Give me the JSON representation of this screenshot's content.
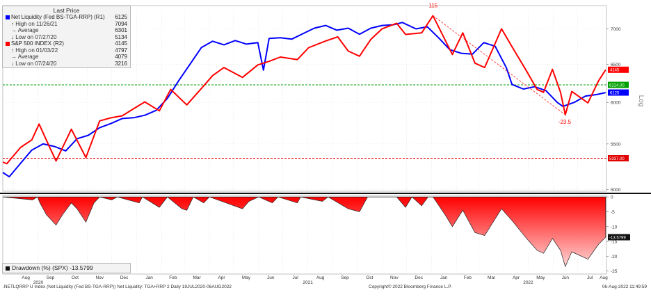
{
  "legend": {
    "title": "Last Price",
    "rows": [
      {
        "key": "nl",
        "label": "Net Liquidity (Fed BS-TGA-RRP)  (R1)",
        "value": "6125",
        "color": "#0000ff"
      },
      {
        "key": "nl_high",
        "label": "High on 11/26/21",
        "value": "7094"
      },
      {
        "key": "nl_avg",
        "label": "Average",
        "value": "6301"
      },
      {
        "key": "nl_low",
        "label": "Low on 07/27/20",
        "value": "5134"
      },
      {
        "key": "spx",
        "label": "S&P 500 INDEX  (R2)",
        "value": "4145",
        "color": "#ff0000"
      },
      {
        "key": "spx_high",
        "label": "High on 01/03/22",
        "value": "4797"
      },
      {
        "key": "spx_avg",
        "label": "Average",
        "value": "4079"
      },
      {
        "key": "spx_low",
        "label": "Low on 07/24/20",
        "value": "3216"
      }
    ]
  },
  "drawdown_legend": "Drawdown (%) (SPX) -13.5799",
  "footer": {
    "left": ".NETLQRRP U Index (Net Liquidity (Fed BS-TGA-RRP)) Net Liquidity: TGA+RRP 2  Daily 19JUL2020-06AUG2022",
    "middle": "Copyright© 2022 Bloomberg Finance L.P.",
    "right": "06-Aug-2022 11:49:59"
  },
  "chart_data": [
    {
      "type": "line",
      "series": [
        {
          "name": "Net Liquidity (Fed BS-TGA-RRP)",
          "axis": "R1",
          "color": "#0000ff",
          "points": [
            [
              "2020-07-19",
              5180
            ],
            [
              "2020-07-27",
              5134
            ],
            [
              "2020-08-10",
              5280
            ],
            [
              "2020-08-24",
              5430
            ],
            [
              "2020-09-07",
              5500
            ],
            [
              "2020-09-21",
              5470
            ],
            [
              "2020-10-05",
              5420
            ],
            [
              "2020-10-19",
              5560
            ],
            [
              "2020-11-02",
              5600
            ],
            [
              "2020-11-16",
              5690
            ],
            [
              "2020-11-30",
              5740
            ],
            [
              "2020-12-14",
              5800
            ],
            [
              "2020-12-28",
              5810
            ],
            [
              "2021-01-11",
              5840
            ],
            [
              "2021-01-25",
              5900
            ],
            [
              "2021-02-08",
              6050
            ],
            [
              "2021-02-22",
              6280
            ],
            [
              "2021-03-08",
              6500
            ],
            [
              "2021-03-22",
              6730
            ],
            [
              "2021-04-05",
              6820
            ],
            [
              "2021-04-19",
              6770
            ],
            [
              "2021-05-03",
              6830
            ],
            [
              "2021-05-17",
              6780
            ],
            [
              "2021-05-31",
              6800
            ],
            [
              "2021-06-07",
              6420
            ],
            [
              "2021-06-14",
              6860
            ],
            [
              "2021-06-28",
              6870
            ],
            [
              "2021-07-12",
              6850
            ],
            [
              "2021-07-26",
              6930
            ],
            [
              "2021-08-09",
              7010
            ],
            [
              "2021-08-23",
              7050
            ],
            [
              "2021-09-06",
              6980
            ],
            [
              "2021-09-20",
              7010
            ],
            [
              "2021-10-04",
              6920
            ],
            [
              "2021-10-18",
              7010
            ],
            [
              "2021-11-01",
              7050
            ],
            [
              "2021-11-15",
              7060
            ],
            [
              "2021-11-26",
              7094
            ],
            [
              "2021-12-13",
              7000
            ],
            [
              "2021-12-27",
              7030
            ],
            [
              "2022-01-10",
              6870
            ],
            [
              "2022-01-24",
              6700
            ],
            [
              "2022-02-07",
              6650
            ],
            [
              "2022-02-21",
              6640
            ],
            [
              "2022-03-07",
              6800
            ],
            [
              "2022-03-21",
              6750
            ],
            [
              "2022-04-04",
              6450
            ],
            [
              "2022-04-11",
              6230
            ],
            [
              "2022-04-25",
              6170
            ],
            [
              "2022-05-09",
              6200
            ],
            [
              "2022-05-23",
              6150
            ],
            [
              "2022-06-06",
              6000
            ],
            [
              "2022-06-13",
              5950
            ],
            [
              "2022-06-27",
              6000
            ],
            [
              "2022-07-11",
              6080
            ],
            [
              "2022-07-25",
              6100
            ],
            [
              "2022-08-05",
              6125
            ]
          ]
        },
        {
          "name": "S&P 500 INDEX",
          "axis": "R2",
          "color": "#ff0000",
          "points": [
            [
              "2020-07-19",
              3230
            ],
            [
              "2020-07-24",
              3216
            ],
            [
              "2020-08-10",
              3360
            ],
            [
              "2020-08-24",
              3430
            ],
            [
              "2020-09-02",
              3580
            ],
            [
              "2020-09-14",
              3380
            ],
            [
              "2020-09-23",
              3240
            ],
            [
              "2020-10-12",
              3530
            ],
            [
              "2020-10-30",
              3270
            ],
            [
              "2020-11-16",
              3610
            ],
            [
              "2020-11-30",
              3640
            ],
            [
              "2020-12-14",
              3660
            ],
            [
              "2020-12-28",
              3730
            ],
            [
              "2021-01-11",
              3800
            ],
            [
              "2021-01-29",
              3710
            ],
            [
              "2021-02-12",
              3930
            ],
            [
              "2021-03-04",
              3770
            ],
            [
              "2021-03-22",
              3940
            ],
            [
              "2021-04-05",
              4080
            ],
            [
              "2021-04-19",
              4170
            ],
            [
              "2021-05-12",
              4060
            ],
            [
              "2021-05-31",
              4200
            ],
            [
              "2021-06-14",
              4240
            ],
            [
              "2021-06-28",
              4290
            ],
            [
              "2021-07-19",
              4260
            ],
            [
              "2021-08-02",
              4400
            ],
            [
              "2021-08-23",
              4480
            ],
            [
              "2021-09-07",
              4530
            ],
            [
              "2021-09-20",
              4360
            ],
            [
              "2021-10-04",
              4300
            ],
            [
              "2021-10-18",
              4500
            ],
            [
              "2021-11-01",
              4630
            ],
            [
              "2021-11-19",
              4700
            ],
            [
              "2021-11-30",
              4560
            ],
            [
              "2021-12-20",
              4580
            ],
            [
              "2022-01-03",
              4797
            ],
            [
              "2022-01-27",
              4320
            ],
            [
              "2022-02-09",
              4580
            ],
            [
              "2022-02-24",
              4220
            ],
            [
              "2022-03-08",
              4170
            ],
            [
              "2022-03-29",
              4630
            ],
            [
              "2022-04-11",
              4410
            ],
            [
              "2022-04-29",
              4130
            ],
            [
              "2022-05-12",
              3930
            ],
            [
              "2022-05-20",
              3900
            ],
            [
              "2022-05-31",
              4150
            ],
            [
              "2022-06-10",
              3900
            ],
            [
              "2022-06-16",
              3670
            ],
            [
              "2022-06-24",
              3910
            ],
            [
              "2022-07-14",
              3790
            ],
            [
              "2022-07-27",
              4020
            ],
            [
              "2022-08-05",
              4145
            ]
          ]
        }
      ],
      "right_axis_ticks": [
        5000,
        5500,
        6000,
        6500,
        7000
      ],
      "right_axis_label": "Log",
      "reference_lines": [
        {
          "label": "6224.00",
          "value": 6224,
          "color": "#00a000"
        },
        {
          "label": "5337.00",
          "value": 5337,
          "color": "#e00000"
        }
      ],
      "last_value_tags": [
        {
          "label": "4145",
          "color": "#ff0000"
        },
        {
          "label": "6125",
          "color": "#0000ff"
        }
      ],
      "annotations": [
        {
          "text": "115",
          "color": "#ff0000"
        },
        {
          "text": "-23.5",
          "color": "#ff0000"
        }
      ],
      "x_months": [
        "Aug",
        "Sep",
        "Oct",
        "Nov",
        "Dec",
        "Jan",
        "Feb",
        "Mar",
        "Apr",
        "May",
        "Jun",
        "Jul",
        "Aug",
        "Sep",
        "Oct",
        "Nov",
        "Dec",
        "Jan",
        "Feb",
        "Mar",
        "Apr",
        "May",
        "Jun",
        "Jul",
        "Aug"
      ],
      "x_years": [
        "2020",
        "2021",
        "2022"
      ]
    },
    {
      "type": "area",
      "name": "Drawdown (%) (SPX)",
      "last_value": "-13.5799",
      "y_ticks": [
        0,
        -5,
        -10,
        -15,
        -20,
        -25
      ],
      "ylim": [
        -26,
        0.5
      ],
      "points": [
        [
          "2020-07-19",
          0
        ],
        [
          "2020-08-25",
          -1
        ],
        [
          "2020-08-31",
          0
        ],
        [
          "2020-09-03",
          -2
        ],
        [
          "2020-09-11",
          -6
        ],
        [
          "2020-09-23",
          -9.5
        ],
        [
          "2020-10-01",
          -6
        ],
        [
          "2020-10-12",
          -2
        ],
        [
          "2020-10-19",
          -4
        ],
        [
          "2020-10-30",
          -8.5
        ],
        [
          "2020-11-09",
          -2
        ],
        [
          "2020-11-16",
          0
        ],
        [
          "2020-12-01",
          -1
        ],
        [
          "2020-12-08",
          0
        ],
        [
          "2021-01-04",
          -2
        ],
        [
          "2021-01-08",
          0
        ],
        [
          "2021-01-29",
          -3.5
        ],
        [
          "2021-02-08",
          0
        ],
        [
          "2021-02-26",
          -4
        ],
        [
          "2021-03-04",
          -4.5
        ],
        [
          "2021-03-12",
          0
        ],
        [
          "2021-03-25",
          -2
        ],
        [
          "2021-04-01",
          0
        ],
        [
          "2021-05-12",
          -4
        ],
        [
          "2021-05-20",
          -1.5
        ],
        [
          "2021-06-01",
          0
        ],
        [
          "2021-06-18",
          -2
        ],
        [
          "2021-06-25",
          0
        ],
        [
          "2021-07-19",
          -2
        ],
        [
          "2021-07-23",
          0
        ],
        [
          "2021-08-19",
          -1.5
        ],
        [
          "2021-08-26",
          0
        ],
        [
          "2021-09-20",
          -4
        ],
        [
          "2021-10-04",
          -5
        ],
        [
          "2021-10-14",
          0
        ],
        [
          "2021-11-19",
          0
        ],
        [
          "2021-11-30",
          -3.5
        ],
        [
          "2021-12-08",
          0
        ],
        [
          "2021-12-20",
          -3
        ],
        [
          "2021-12-28",
          0
        ],
        [
          "2022-01-03",
          0
        ],
        [
          "2022-01-18",
          -6
        ],
        [
          "2022-01-27",
          -10
        ],
        [
          "2022-02-09",
          -4.5
        ],
        [
          "2022-02-24",
          -12
        ],
        [
          "2022-03-08",
          -13
        ],
        [
          "2022-03-29",
          -4
        ],
        [
          "2022-04-11",
          -8
        ],
        [
          "2022-04-29",
          -14
        ],
        [
          "2022-05-12",
          -18
        ],
        [
          "2022-05-20",
          -19
        ],
        [
          "2022-05-31",
          -14
        ],
        [
          "2022-06-10",
          -18
        ],
        [
          "2022-06-16",
          -23.5
        ],
        [
          "2022-06-24",
          -18.5
        ],
        [
          "2022-07-14",
          -21
        ],
        [
          "2022-07-27",
          -16
        ],
        [
          "2022-08-05",
          -13.5799
        ]
      ]
    }
  ]
}
